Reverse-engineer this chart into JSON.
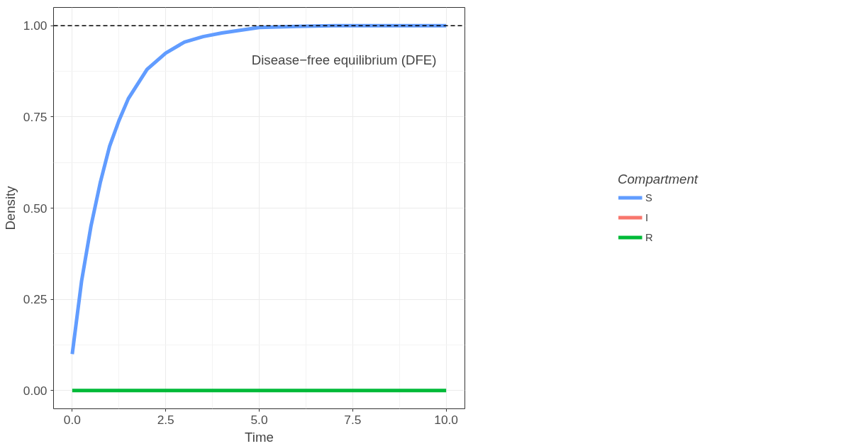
{
  "chart_data": {
    "type": "line",
    "xlabel": "Time",
    "ylabel": "Density",
    "legend_title": "Compartment",
    "x": [
      0,
      0.25,
      0.5,
      0.75,
      1,
      1.25,
      1.5,
      2,
      2.5,
      3,
      3.5,
      4,
      5,
      6,
      7,
      8,
      10
    ],
    "series": [
      {
        "name": "S",
        "color": "#619cff",
        "values": [
          0.1,
          0.3,
          0.45,
          0.57,
          0.67,
          0.74,
          0.8,
          0.88,
          0.925,
          0.955,
          0.97,
          0.98,
          0.995,
          0.998,
          1.0,
          1.0,
          1.0
        ]
      },
      {
        "name": "I",
        "color": "#f8766d",
        "values": [
          null,
          null,
          null,
          null,
          null,
          null,
          null,
          null,
          null,
          null,
          null,
          null,
          null,
          null,
          null,
          null,
          null
        ]
      },
      {
        "name": "R",
        "color": "#00ba38",
        "values": [
          0,
          0,
          0,
          0,
          0,
          0,
          0,
          0,
          0,
          0,
          0,
          0,
          0,
          0,
          0,
          0,
          0
        ]
      }
    ],
    "xlim": [
      -0.5,
      10.5
    ],
    "ylim": [
      -0.05,
      1.05
    ],
    "xticks": [
      {
        "value": 0,
        "label": "0.0"
      },
      2.5,
      {
        "value": 5,
        "label": "5.0"
      },
      7.5,
      {
        "value": 10,
        "label": "10.0"
      }
    ],
    "yticks": [
      {
        "value": 0,
        "label": "0.00"
      },
      0.25,
      {
        "value": 0.5,
        "label": "0.50"
      },
      0.75,
      {
        "value": 1,
        "label": "1.00"
      }
    ],
    "ref_lines": [
      {
        "axis": "y",
        "value": 1,
        "label": "Disease−free equilibrium (DFE)",
        "color": "#000000",
        "line_style": "dashed"
      }
    ],
    "grid": true,
    "legend": "right",
    "line_style": "solid",
    "marker": "none"
  }
}
